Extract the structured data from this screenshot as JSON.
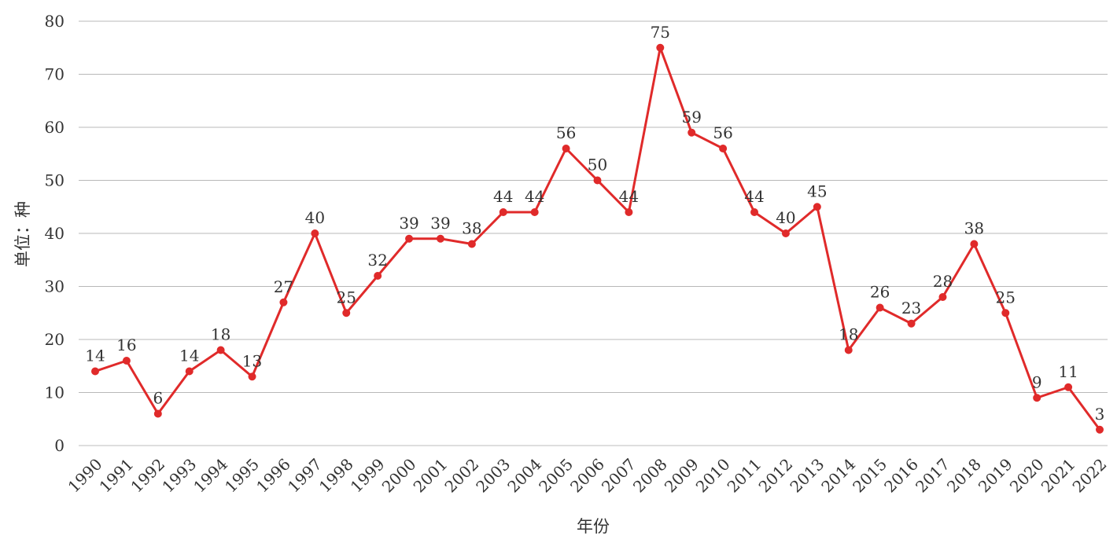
{
  "chart_data": {
    "type": "line",
    "title": "",
    "xlabel": "年份",
    "ylabel": "单位：种",
    "ylim": [
      0,
      80
    ],
    "yticks": [
      0,
      10,
      20,
      30,
      40,
      50,
      60,
      70,
      80
    ],
    "grid": true,
    "legend": "none",
    "line_color": "#e02a2a",
    "categories": [
      "1990",
      "1991",
      "1992",
      "1993",
      "1994",
      "1995",
      "1996",
      "1997",
      "1998",
      "1999",
      "2000",
      "2001",
      "2002",
      "2003",
      "2004",
      "2005",
      "2006",
      "2007",
      "2008",
      "2009",
      "2010",
      "2011",
      "2012",
      "2013",
      "2014",
      "2015",
      "2016",
      "2017",
      "2018",
      "2019",
      "2020",
      "2021",
      "2022"
    ],
    "values": [
      14,
      16,
      6,
      14,
      18,
      13,
      27,
      40,
      25,
      32,
      39,
      39,
      38,
      44,
      44,
      56,
      50,
      44,
      75,
      59,
      56,
      44,
      40,
      45,
      18,
      26,
      23,
      28,
      38,
      25,
      9,
      11,
      3
    ]
  }
}
